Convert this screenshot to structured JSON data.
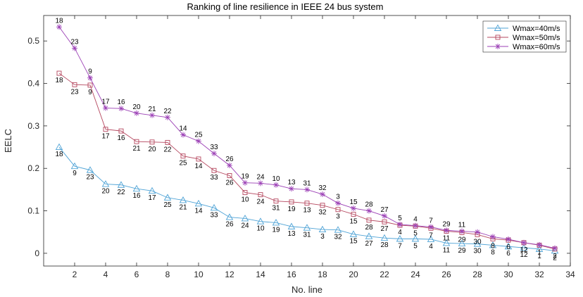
{
  "chart_data": {
    "type": "line",
    "title": "Ranking of line resilience in IEEE 24 bus system",
    "xlabel": "No. line",
    "ylabel": "EELC",
    "xlim": [
      0,
      34
    ],
    "ylim": [
      -0.03,
      0.56
    ],
    "xticks": [
      2,
      4,
      6,
      8,
      10,
      12,
      14,
      16,
      18,
      20,
      22,
      24,
      26,
      28,
      30,
      32,
      34
    ],
    "yticks": [
      0,
      0.1,
      0.2,
      0.3,
      0.4,
      0.5
    ],
    "ytick_labels": [
      "0",
      "0.1",
      "0.2",
      "0.3",
      "0.4",
      "0.5"
    ],
    "grid": false,
    "legend_position": "top-right",
    "x": [
      1,
      2,
      3,
      4,
      5,
      6,
      7,
      8,
      9,
      10,
      11,
      12,
      13,
      14,
      15,
      16,
      17,
      18,
      19,
      20,
      21,
      22,
      23,
      24,
      25,
      26,
      27,
      28,
      29,
      30,
      31,
      32,
      33
    ],
    "series": [
      {
        "name": "Wmax=40m/s",
        "color": "#4FA3D6",
        "marker": "triangle",
        "label_position": "below",
        "values": [
          0.25,
          0.205,
          0.196,
          0.163,
          0.161,
          0.152,
          0.147,
          0.131,
          0.125,
          0.117,
          0.107,
          0.085,
          0.082,
          0.075,
          0.072,
          0.063,
          0.06,
          0.056,
          0.055,
          0.045,
          0.04,
          0.036,
          0.034,
          0.034,
          0.033,
          0.024,
          0.023,
          0.022,
          0.019,
          0.016,
          0.013,
          0.01,
          0.006
        ],
        "labels": [
          "18",
          "9",
          "23",
          "20",
          "22",
          "16",
          "17",
          "25",
          "21",
          "14",
          "33",
          "26",
          "24",
          "10",
          "19",
          "13",
          "31",
          "3",
          "32",
          "15",
          "27",
          "28",
          "7",
          "5",
          "4",
          "11",
          "29",
          "30",
          "8",
          "6",
          "12",
          "1",
          "2"
        ]
      },
      {
        "name": "Wmax=50m/s",
        "color": "#B5475F",
        "marker": "square",
        "label_position": "below",
        "values": [
          0.424,
          0.397,
          0.396,
          0.292,
          0.288,
          0.263,
          0.262,
          0.261,
          0.229,
          0.222,
          0.195,
          0.183,
          0.143,
          0.138,
          0.123,
          0.121,
          0.118,
          0.113,
          0.103,
          0.092,
          0.078,
          0.074,
          0.066,
          0.064,
          0.059,
          0.052,
          0.049,
          0.044,
          0.034,
          0.031,
          0.025,
          0.019,
          0.01
        ],
        "labels": [
          "18",
          "23",
          "9",
          "17",
          "16",
          "21",
          "20",
          "22",
          "25",
          "14",
          "33",
          "26",
          "10",
          "24",
          "31",
          "19",
          "13",
          "32",
          "3",
          "15",
          "28",
          "27",
          "4",
          "5",
          "7",
          "11",
          "29",
          "30",
          "8",
          "6",
          "12",
          "1",
          "2"
        ]
      },
      {
        "name": "Wmax=60m/s",
        "color": "#9B3FB5",
        "marker": "star",
        "label_position": "above",
        "values": [
          0.533,
          0.483,
          0.413,
          0.342,
          0.341,
          0.33,
          0.325,
          0.32,
          0.279,
          0.264,
          0.235,
          0.207,
          0.166,
          0.165,
          0.161,
          0.152,
          0.15,
          0.139,
          0.118,
          0.106,
          0.1,
          0.088,
          0.068,
          0.065,
          0.062,
          0.054,
          0.052,
          0.05,
          0.039,
          0.033,
          0.025,
          0.02,
          0.012
        ],
        "labels": [
          "18",
          "23",
          "9",
          "17",
          "16",
          "20",
          "21",
          "22",
          "14",
          "25",
          "33",
          "26",
          "19",
          "24",
          "10",
          "13",
          "31",
          "32",
          "3",
          "15",
          "28",
          "27",
          "5",
          "4",
          "7",
          "29",
          "11",
          "",
          "",
          "",
          "",
          "",
          ""
        ]
      }
    ]
  }
}
